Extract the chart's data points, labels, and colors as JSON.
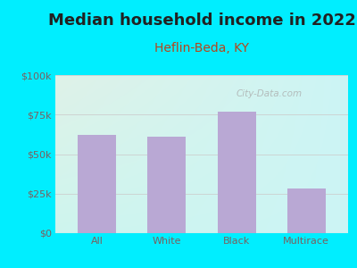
{
  "title": "Median household income in 2022",
  "subtitle": "Heflin-Beda, KY",
  "categories": [
    "All",
    "White",
    "Black",
    "Multirace"
  ],
  "values": [
    62000,
    61000,
    77000,
    28000
  ],
  "bar_color": "#b9a8d4",
  "background_outer": "#00eeff",
  "background_inner_topleft": "#dff2e8",
  "background_inner_topright": "#ccf5f5",
  "background_inner_bottom": "#cef5ee",
  "title_color": "#212121",
  "subtitle_color": "#b5451b",
  "tick_color": "#7a6060",
  "watermark": "City-Data.com",
  "ylim": [
    0,
    100000
  ],
  "yticks": [
    0,
    25000,
    50000,
    75000,
    100000
  ],
  "ytick_labels": [
    "$0",
    "$25k",
    "$50k",
    "$75k",
    "$100k"
  ],
  "gridline_color": "#cccccc",
  "title_fontsize": 13,
  "subtitle_fontsize": 10
}
